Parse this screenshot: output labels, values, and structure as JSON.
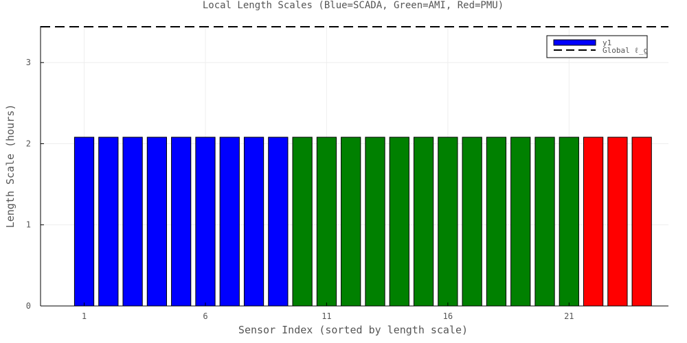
{
  "chart_data": {
    "type": "bar",
    "title": "Local Length Scales (Blue=SCADA, Green=AMI, Red=PMU)",
    "xlabel": "Sensor Index (sorted by length scale)",
    "ylabel": "Length Scale (hours)",
    "xlim": [
      -0.8,
      25.1
    ],
    "ylim": [
      0,
      3.45
    ],
    "x_ticks": [
      1,
      6,
      11,
      16,
      21
    ],
    "y_ticks": [
      0,
      1,
      2,
      3
    ],
    "grid": true,
    "legend_position": "top-right",
    "categories": [
      1,
      2,
      3,
      4,
      5,
      6,
      7,
      8,
      9,
      10,
      11,
      12,
      13,
      14,
      15,
      16,
      17,
      18,
      19,
      20,
      21,
      22,
      23,
      24
    ],
    "values": [
      2.08,
      2.08,
      2.08,
      2.08,
      2.08,
      2.08,
      2.08,
      2.08,
      2.08,
      2.08,
      2.08,
      2.08,
      2.08,
      2.08,
      2.08,
      2.08,
      2.08,
      2.08,
      2.08,
      2.08,
      2.08,
      2.08,
      2.08,
      2.08
    ],
    "bar_colors": [
      "#0000ff",
      "#0000ff",
      "#0000ff",
      "#0000ff",
      "#0000ff",
      "#0000ff",
      "#0000ff",
      "#0000ff",
      "#0000ff",
      "#008000",
      "#008000",
      "#008000",
      "#008000",
      "#008000",
      "#008000",
      "#008000",
      "#008000",
      "#008000",
      "#008000",
      "#008000",
      "#008000",
      "#ff0000",
      "#ff0000",
      "#ff0000"
    ],
    "series": [
      {
        "name": "y1",
        "color": "#0000ff"
      }
    ],
    "reference_line": {
      "name": "Global ℓ_g",
      "y": 3.45,
      "style": "dashed",
      "color": "#000000"
    }
  }
}
